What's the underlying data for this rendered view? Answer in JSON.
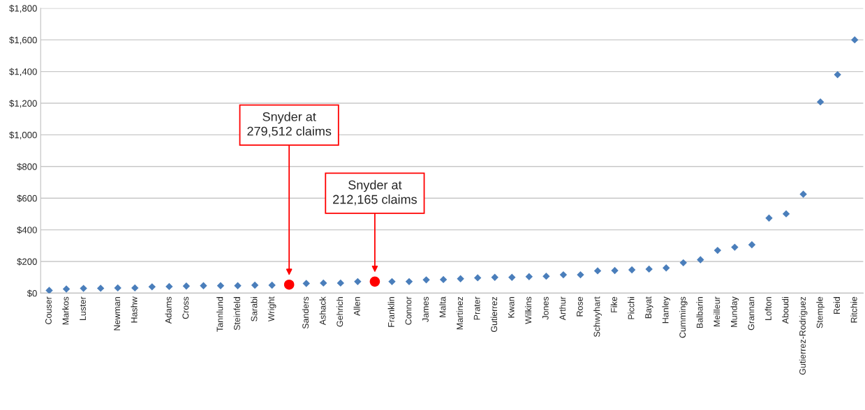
{
  "chart_data": {
    "type": "scatter",
    "categories": [
      "Couser",
      "Markos",
      "Luster",
      null,
      "Newman",
      "Hashw",
      null,
      "Adams",
      "Cross",
      null,
      "Tannlund",
      "Steinfeld",
      "Sarabi",
      "Wright",
      null,
      "Sanders",
      "Ashack",
      "Gehrich",
      "Allen",
      null,
      "Franklin",
      "Connor",
      "James",
      "Malta",
      "Martinez",
      "Prater",
      "Gutierrez",
      "Kwan",
      "Wilkins",
      "Jones",
      "Arthur",
      "Rose",
      "Schwyhart",
      "Fike",
      "Picchi",
      "Bayat",
      "Hanley",
      "Cummings",
      "Balbarin",
      "Meilleur",
      "Munday",
      "Grannan",
      "Lofton",
      "Aboudi",
      "Gutierrez-Rodriguez",
      "Stemple",
      "Reid",
      "Ritchie"
    ],
    "series": [
      {
        "color": "#4a7ebb",
        "marker": "diamond",
        "values": [
          17,
          26,
          30,
          31,
          33,
          33,
          40,
          42,
          45,
          47,
          47,
          47,
          50,
          50,
          null,
          61,
          64,
          64,
          73,
          null,
          73,
          73,
          84,
          86,
          91,
          97,
          100,
          100,
          104,
          107,
          116,
          116,
          141,
          143,
          147,
          152,
          159,
          192,
          211,
          270,
          290,
          306,
          474,
          501,
          625,
          1208,
          1380,
          1600
        ]
      },
      {
        "color": "#ff0000",
        "marker": "circle",
        "values": [
          null,
          null,
          null,
          null,
          null,
          null,
          null,
          null,
          null,
          null,
          null,
          null,
          null,
          null,
          54,
          null,
          null,
          null,
          null,
          73,
          null,
          null,
          null,
          null,
          null,
          null,
          null,
          null,
          null,
          null,
          null,
          null,
          null,
          null,
          null,
          null,
          null,
          null,
          null,
          null,
          null,
          null,
          null,
          null,
          null,
          null,
          null,
          null
        ]
      }
    ],
    "ylim": [
      0,
      1800
    ],
    "yticks": [
      {
        "value": 0,
        "label": "$0"
      },
      {
        "value": 200,
        "label": "$200"
      },
      {
        "value": 400,
        "label": "$400"
      },
      {
        "value": 600,
        "label": "$600"
      },
      {
        "value": 800,
        "label": "$800"
      },
      {
        "value": 1000,
        "label": "$1,000"
      },
      {
        "value": 1200,
        "label": "$1,200"
      },
      {
        "value": 1400,
        "label": "$1,400"
      },
      {
        "value": 1600,
        "label": "$1,600"
      },
      {
        "value": 1800,
        "label": "$1,800"
      }
    ],
    "grid": "y",
    "annotations": [
      "Snyder at\n279,512 claims",
      "Snyder at\n212,165 claims"
    ]
  }
}
